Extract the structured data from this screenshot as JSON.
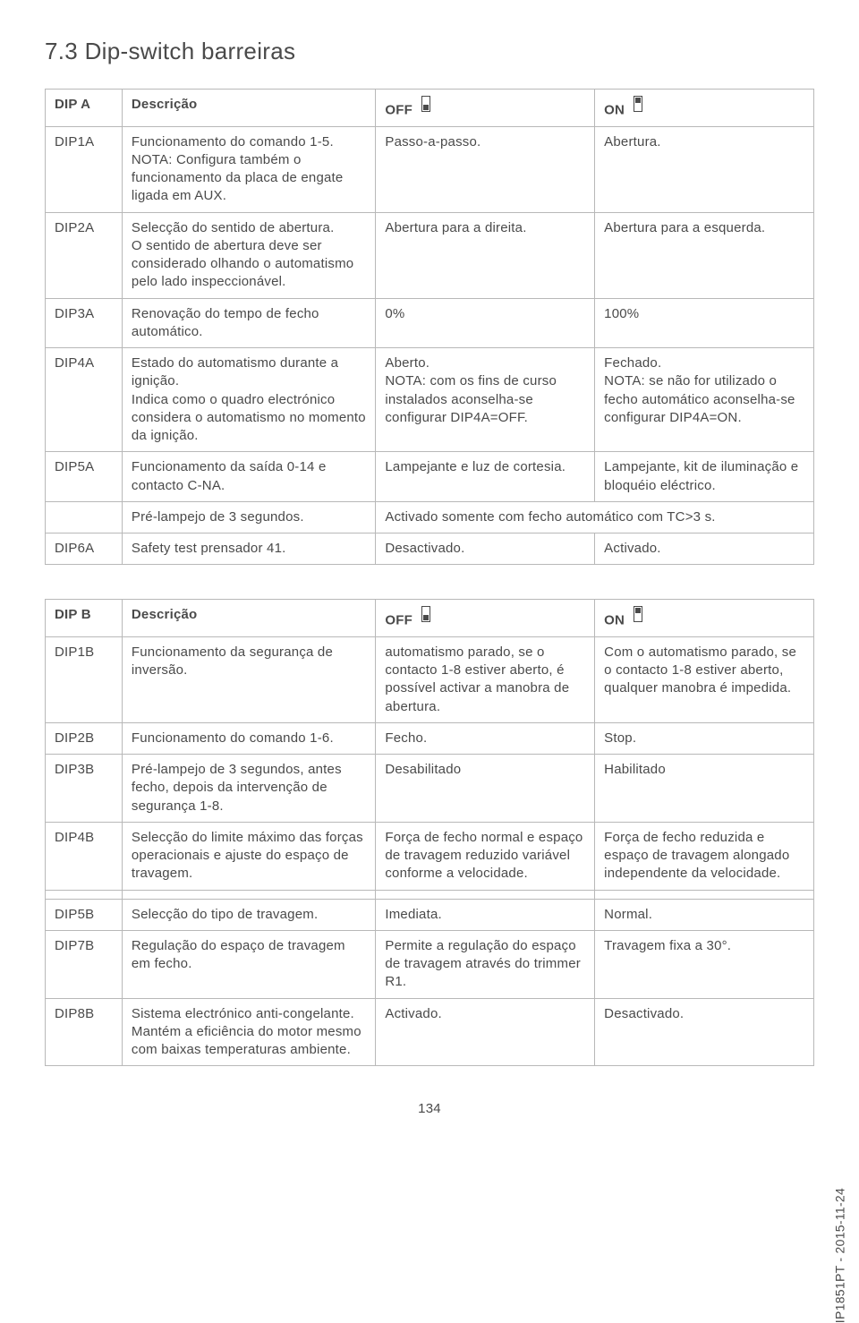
{
  "section_title": "7.3   Dip-switch barreiras",
  "page_number": "134",
  "side_label": "IP1851PT - 2015-11-24",
  "icon_off": {
    "stroke": "#4a4a4a",
    "fill_outer": "#ffffff",
    "fill_dot": "#4a4a4a"
  },
  "icon_on": {
    "stroke": "#4a4a4a",
    "fill_outer": "#ffffff",
    "fill_dot": "#4a4a4a"
  },
  "tableA": {
    "header": {
      "a": "DIP A",
      "b": "Descrição",
      "c": "OFF",
      "d": "ON"
    },
    "rows": [
      {
        "code": "DIP1A",
        "desc": "Funcionamento do comando 1-5.\nNOTA: Configura também o funcionamento da placa de engate ligada em AUX.",
        "off": "Passo-a-passo.",
        "on": "Abertura."
      },
      {
        "code": "DIP2A",
        "desc": "Selecção do sentido de abertura.\nO sentido de abertura deve ser considerado olhando o automatismo pelo lado inspeccionável.",
        "off": "Abertura para a direita.",
        "on": "Abertura para a esquerda."
      },
      {
        "code": "DIP3A",
        "desc": "Renovação do tempo de fecho automático.",
        "off": "0%",
        "on": "100%"
      },
      {
        "code": "DIP4A",
        "desc": "Estado do automatismo durante a ignição.\nIndica como o quadro electrónico considera o automatismo no momento da ignição.",
        "off": "Aberto.\nNOTA: com os fins de curso instalados aconselha-se configurar DIP4A=OFF.",
        "on": "Fechado.\nNOTA: se não for utilizado o fecho automático aconselha-se configurar DIP4A=ON."
      },
      {
        "code": "DIP5A",
        "desc": "Funcionamento da saída 0-14 e contacto C-NA.",
        "off": "Lampejante e luz de cortesia.",
        "on": "Lampejante, kit de iluminação e bloquéio eléctrico."
      },
      {
        "code": "",
        "desc": "Pré-lampejo de 3 segundos.",
        "off": "Activado somente com fecho automático com TC>3 s.",
        "on": "",
        "merge_on": true
      },
      {
        "code": "DIP6A",
        "desc": "Safety test prensador 41.",
        "off": "Desactivado.",
        "on": "Activado."
      }
    ]
  },
  "tableB": {
    "header": {
      "a": "DIP B",
      "b": "Descrição",
      "c": "OFF",
      "d": "ON"
    },
    "rows": [
      {
        "code": "DIP1B",
        "desc": "Funcionamento da segurança de inversão.",
        "off": "automatismo parado, se o contacto 1-8 estiver aberto, é possível activar a manobra de abertura.",
        "on": "Com o automatismo parado, se o contacto 1-8 estiver aberto, qualquer manobra é impedida."
      },
      {
        "code": "DIP2B",
        "desc": "Funcionamento do comando 1-6.",
        "off": "Fecho.",
        "on": "Stop."
      },
      {
        "code": "DIP3B",
        "desc": "Pré-lampejo de 3 segundos, antes fecho, depois da intervenção de segurança 1-8.",
        "off": "Desabilitado",
        "on": "Habilitado"
      },
      {
        "code": "DIP4B",
        "desc": "Selecção do limite máximo das forças operacionais e ajuste do espaço de travagem.",
        "off": "Força de fecho normal e espaço de travagem reduzido variável conforme a velocidade.",
        "on": "Força de fecho reduzida e espaço de travagem alongado independente da velocidade."
      }
    ],
    "rows2": [
      {
        "code": "DIP5B",
        "desc": "Selecção do tipo de travagem.",
        "off": "Imediata.",
        "on": "Normal."
      },
      {
        "code": "DIP7B",
        "desc": "Regulação do espaço de travagem em fecho.",
        "off": "Permite a regulação do espaço de travagem através do trimmer R1.",
        "on": "Travagem fixa a 30°."
      },
      {
        "code": "DIP8B",
        "desc": "Sistema electrónico anti-congelante.\nMantém a eficiência do motor mesmo com baixas temperaturas ambiente.",
        "off": "Activado.",
        "on": "Desactivado."
      }
    ]
  }
}
